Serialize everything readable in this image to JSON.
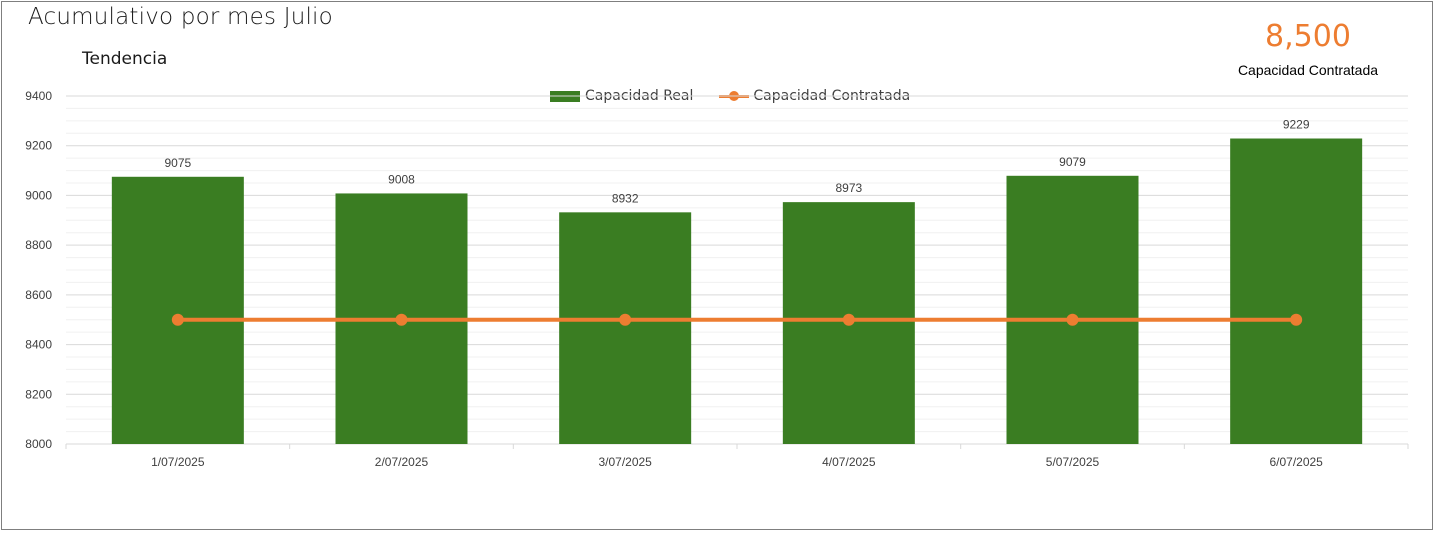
{
  "header": {
    "title": "Acumulativo por mes Julio",
    "subtitle": "Tendencia"
  },
  "kpi": {
    "value": "8,500",
    "label": "Capacidad Contratada"
  },
  "colors": {
    "bar": "#3a7d22",
    "line": "#ed7d31",
    "grid": "#d9d9d9",
    "axis_text": "#404040"
  },
  "chart_data": {
    "type": "bar",
    "categories": [
      "1/07/2025",
      "2/07/2025",
      "3/07/2025",
      "4/07/2025",
      "5/07/2025",
      "6/07/2025"
    ],
    "series": [
      {
        "name": "Capacidad Real",
        "type": "bar",
        "values": [
          9075,
          9008,
          8932,
          8973,
          9079,
          9229
        ],
        "data_labels": [
          "9075",
          "9008",
          "8932",
          "8973",
          "9079",
          "9229"
        ]
      },
      {
        "name": "Capacidad Contratada",
        "type": "line",
        "values": [
          8500,
          8500,
          8500,
          8500,
          8500,
          8500
        ]
      }
    ],
    "ylim": [
      8000,
      9400
    ],
    "yticks": [
      "8000",
      "8200",
      "8400",
      "8600",
      "8800",
      "9000",
      "9200",
      "9400"
    ],
    "grid": true,
    "legend": "top-center"
  }
}
